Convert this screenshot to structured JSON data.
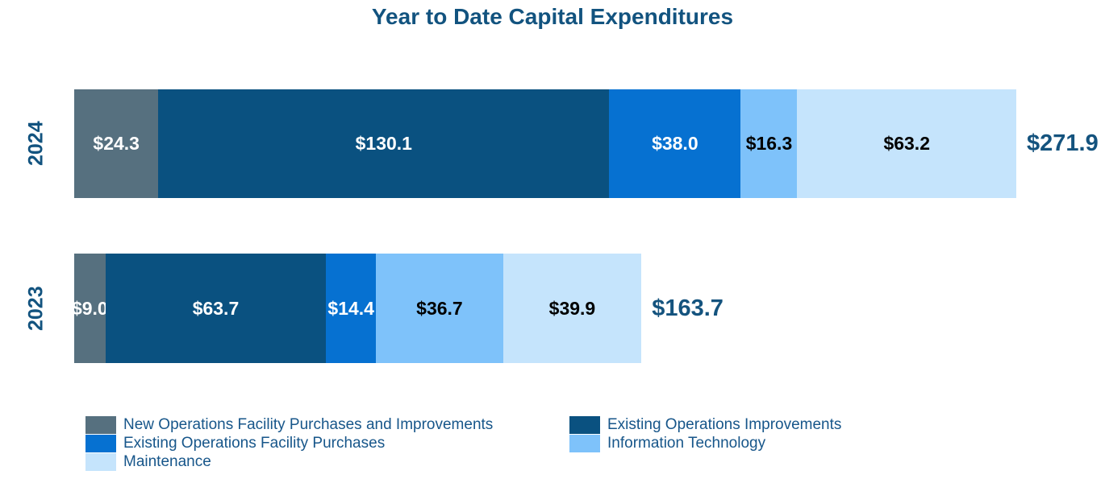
{
  "title": "Year to Date Capital Expenditures",
  "colors": {
    "background": "#FFFFFF",
    "title_text": "#12537F",
    "year_label_text": "#12537F",
    "total_label_text": "#14537E",
    "legend_text": "#17568A"
  },
  "chart_data": {
    "type": "bar",
    "orientation": "horizontal",
    "stacked": true,
    "title": "Year to Date Capital Expenditures",
    "categories": [
      "2024",
      "2023"
    ],
    "series": [
      {
        "name": "New Operations Facility Purchases and Improvements",
        "color": "#56707F",
        "label_color": "#FFFFFF",
        "values": [
          24.3,
          9.0
        ]
      },
      {
        "name": "Existing Operations Improvements",
        "color": "#0A5180",
        "label_color": "#FFFFFF",
        "values": [
          130.1,
          63.7
        ]
      },
      {
        "name": "Existing Operations Facility Purchases",
        "color": "#0671D1",
        "label_color": "#FFFFFF",
        "values": [
          38.0,
          14.4
        ]
      },
      {
        "name": "Information Technology",
        "color": "#7EC2FA",
        "label_color": "#000000",
        "values": [
          16.3,
          36.7
        ]
      },
      {
        "name": "Maintenance",
        "color": "#C5E4FC",
        "label_color": "#000000",
        "values": [
          63.2,
          39.9
        ]
      }
    ],
    "value_prefix": "$",
    "value_decimals": 1,
    "totals": [
      "$271.9",
      "$163.7"
    ],
    "xlim": [
      0,
      271.9
    ],
    "grid": false,
    "axis_lines": false,
    "legend_position": "bottom",
    "legend_columns": [
      [
        0,
        2,
        4
      ],
      [
        1,
        3
      ]
    ]
  }
}
